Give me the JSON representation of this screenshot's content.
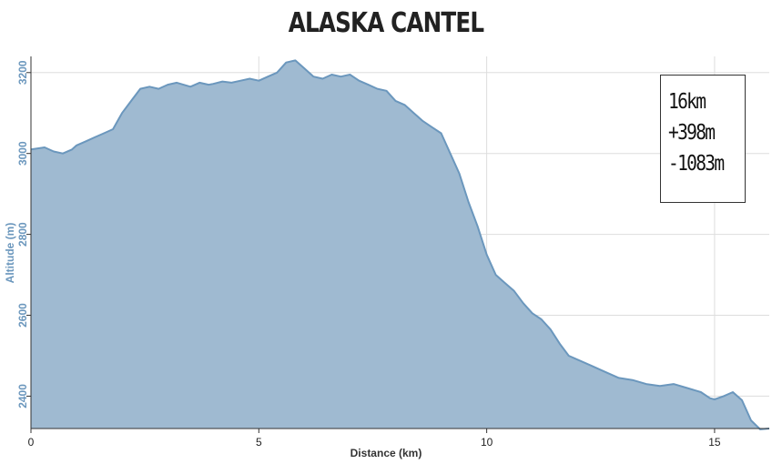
{
  "chart_data": {
    "type": "area",
    "title": "ALASKA CANTEL",
    "xlabel": "Distance (km)",
    "ylabel": "Altitude (m)",
    "xlim": [
      0,
      16.2
    ],
    "ylim": [
      2320,
      3240
    ],
    "x_ticks": [
      0,
      5,
      10,
      15
    ],
    "y_ticks": [
      2400,
      2600,
      2800,
      3000,
      3200
    ],
    "grid": true,
    "colors": {
      "fill": "#9fbad1",
      "line": "#6b97bd",
      "grid": "#dddddd"
    },
    "series": [
      {
        "x": [
          0,
          0.3,
          0.5,
          0.7,
          0.9,
          1.0,
          1.2,
          1.4,
          1.6,
          1.8,
          2.0,
          2.2,
          2.4,
          2.6,
          2.8,
          3.0,
          3.2,
          3.5,
          3.7,
          3.9,
          4.0,
          4.2,
          4.4,
          4.6,
          4.8,
          5.0,
          5.2,
          5.4,
          5.6,
          5.8,
          6.0,
          6.2,
          6.4,
          6.6,
          6.8,
          7.0,
          7.2,
          7.4,
          7.6,
          7.8,
          8.0,
          8.2,
          8.4,
          8.6,
          8.8,
          9.0,
          9.2,
          9.4,
          9.6,
          9.8,
          10.0,
          10.2,
          10.4,
          10.6,
          10.8,
          11.0,
          11.2,
          11.4,
          11.6,
          11.8,
          12.0,
          12.3,
          12.6,
          12.9,
          13.2,
          13.5,
          13.8,
          14.1,
          14.4,
          14.7,
          14.9,
          15.0,
          15.2,
          15.4,
          15.6,
          15.8,
          16.0,
          16.2
        ],
        "y": [
          3010,
          3015,
          3005,
          3000,
          3010,
          3020,
          3030,
          3040,
          3050,
          3060,
          3100,
          3130,
          3160,
          3165,
          3160,
          3170,
          3175,
          3165,
          3175,
          3170,
          3172,
          3178,
          3175,
          3180,
          3185,
          3180,
          3190,
          3200,
          3225,
          3230,
          3210,
          3190,
          3185,
          3195,
          3190,
          3195,
          3180,
          3170,
          3160,
          3155,
          3130,
          3120,
          3100,
          3080,
          3065,
          3050,
          3000,
          2950,
          2880,
          2820,
          2750,
          2700,
          2680,
          2660,
          2630,
          2605,
          2590,
          2565,
          2530,
          2500,
          2490,
          2475,
          2460,
          2445,
          2440,
          2430,
          2425,
          2430,
          2420,
          2410,
          2395,
          2392,
          2400,
          2410,
          2390,
          2340,
          2318,
          2320
        ]
      }
    ]
  },
  "stats": {
    "distance": "16km",
    "ascent": "+398m",
    "descent": "-1083m"
  }
}
